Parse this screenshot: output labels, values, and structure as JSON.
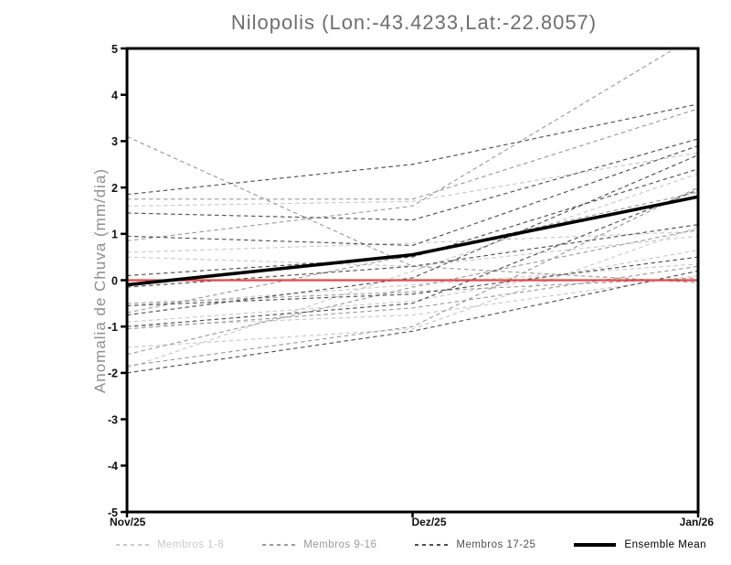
{
  "chart_data": {
    "type": "line",
    "title": "Nilopolis (Lon:-43.4233,Lat:-22.8057)",
    "ylabel": "Anomalia de Chuva (mm/dia)",
    "x_categories": [
      "Nov/25",
      "Dez/25",
      "Jan/26"
    ],
    "ylim": [
      -5,
      5
    ],
    "yticks": [
      5,
      4,
      3,
      2,
      1,
      0,
      -1,
      -2,
      -3,
      -4,
      -5
    ],
    "grid": false,
    "legend_position": "bottom",
    "groups": [
      {
        "name": "Membros 1-8",
        "color": "#c9c9c9",
        "style": "dashed",
        "series": [
          [
            1.6,
            1.7,
            2.75
          ],
          [
            0.6,
            0.8,
            1.05
          ],
          [
            0.5,
            0.3,
            0.95
          ],
          [
            -0.55,
            -0.1,
            0.35
          ],
          [
            -0.9,
            -0.45,
            0.65
          ],
          [
            -1.0,
            -0.75,
            0.1
          ],
          [
            -1.45,
            -1.05,
            1.15
          ],
          [
            -1.9,
            0.2,
            2.3
          ]
        ]
      },
      {
        "name": "Membros 9-16",
        "color": "#9b9b9b",
        "style": "dashed",
        "series": [
          [
            3.1,
            0.3,
            -0.05
          ],
          [
            1.75,
            1.75,
            3.7
          ],
          [
            0.85,
            1.6,
            5.3
          ],
          [
            -0.5,
            -0.25,
            0.05
          ],
          [
            -0.7,
            0.55,
            1.9
          ],
          [
            -1.05,
            -0.6,
            0.3
          ],
          [
            -1.6,
            -0.15,
            1.1
          ],
          [
            -1.85,
            -1.0,
            2.0
          ]
        ]
      },
      {
        "name": "Membros 17-25",
        "color": "#4f4f4f",
        "style": "dashed",
        "series": [
          [
            1.85,
            2.5,
            3.8
          ],
          [
            1.45,
            1.3,
            3.05
          ],
          [
            0.95,
            0.75,
            2.9
          ],
          [
            0.1,
            0.5,
            2.4
          ],
          [
            -0.15,
            0.3,
            1.2
          ],
          [
            -0.55,
            -0.3,
            0.5
          ],
          [
            -0.75,
            0.05,
            2.7
          ],
          [
            -1.0,
            -0.5,
            1.95
          ],
          [
            -2.0,
            -1.1,
            0.2
          ]
        ]
      }
    ],
    "ensemble_mean": {
      "name": "Ensemble Mean",
      "color": "#000000",
      "style": "solid",
      "values": [
        -0.1,
        0.55,
        1.8
      ]
    },
    "zero_line": {
      "color": "#f4403a",
      "values": [
        0,
        0,
        0
      ]
    }
  }
}
